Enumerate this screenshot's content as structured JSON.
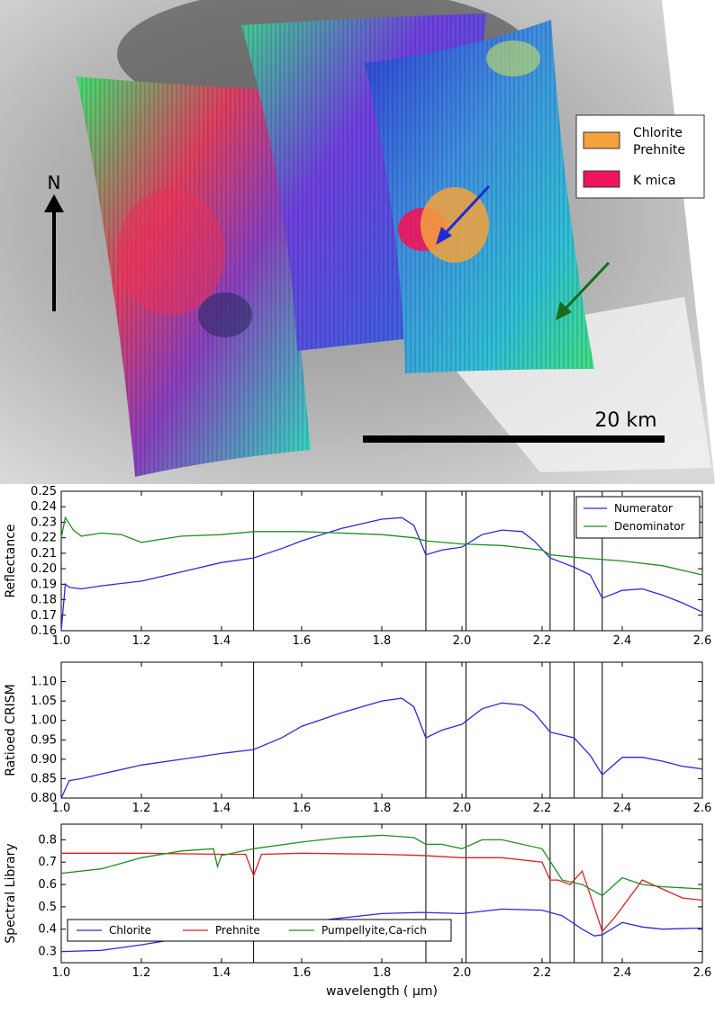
{
  "map": {
    "north_label": "N",
    "scale_label": "20 km",
    "legend": [
      {
        "label": "Chlorite\nPrehnite",
        "color": "#f5a23c"
      },
      {
        "label": "K mica",
        "color": "#f0145a"
      }
    ],
    "arrow_colors": {
      "blue": "#1f2bd6",
      "green": "#1a6b1a"
    }
  },
  "chart_data": [
    {
      "type": "line",
      "ylabel": "Reflectance",
      "xlim": [
        1.0,
        2.6
      ],
      "ylim": [
        0.16,
        0.25
      ],
      "xticks": [
        "1.0",
        "1.2",
        "1.4",
        "1.6",
        "1.8",
        "2.0",
        "2.2",
        "2.4",
        "2.6"
      ],
      "yticks": [
        "0.16",
        "0.17",
        "0.18",
        "0.19",
        "0.20",
        "0.21",
        "0.22",
        "0.23",
        "0.24",
        "0.25"
      ],
      "vlines": [
        1.48,
        1.91,
        2.01,
        2.22,
        2.28,
        2.35
      ],
      "legend_position": "top-right",
      "series": [
        {
          "name": "Numerator",
          "color": "#2b2bd6",
          "x": [
            1.0,
            1.01,
            1.02,
            1.05,
            1.1,
            1.2,
            1.3,
            1.4,
            1.48,
            1.55,
            1.6,
            1.7,
            1.8,
            1.85,
            1.88,
            1.91,
            1.95,
            2.0,
            2.05,
            2.1,
            2.15,
            2.18,
            2.22,
            2.28,
            2.32,
            2.35,
            2.4,
            2.45,
            2.5,
            2.55,
            2.6
          ],
          "y": [
            0.16,
            0.19,
            0.188,
            0.187,
            0.189,
            0.192,
            0.198,
            0.204,
            0.207,
            0.213,
            0.218,
            0.226,
            0.232,
            0.233,
            0.228,
            0.209,
            0.212,
            0.214,
            0.222,
            0.225,
            0.224,
            0.218,
            0.207,
            0.201,
            0.196,
            0.181,
            0.186,
            0.187,
            0.183,
            0.178,
            0.172
          ]
        },
        {
          "name": "Denominator",
          "color": "#1f8f1f",
          "x": [
            1.0,
            1.01,
            1.03,
            1.05,
            1.1,
            1.15,
            1.2,
            1.3,
            1.4,
            1.48,
            1.6,
            1.7,
            1.8,
            1.88,
            1.91,
            2.0,
            2.1,
            2.2,
            2.22,
            2.3,
            2.4,
            2.5,
            2.6
          ],
          "y": [
            0.22,
            0.233,
            0.225,
            0.221,
            0.223,
            0.222,
            0.217,
            0.221,
            0.222,
            0.224,
            0.224,
            0.223,
            0.222,
            0.22,
            0.218,
            0.216,
            0.215,
            0.212,
            0.209,
            0.207,
            0.205,
            0.202,
            0.196
          ]
        }
      ]
    },
    {
      "type": "line",
      "ylabel": "Ratioed CRISM",
      "xlim": [
        1.0,
        2.6
      ],
      "ylim": [
        0.8,
        1.15
      ],
      "xticks": [
        "1.0",
        "1.2",
        "1.4",
        "1.6",
        "1.8",
        "2.0",
        "2.2",
        "2.4",
        "2.6"
      ],
      "yticks": [
        "0.80",
        "0.85",
        "0.90",
        "0.95",
        "1.00",
        "1.05",
        "1.10"
      ],
      "vlines": [
        1.48,
        1.91,
        2.01,
        2.22,
        2.28,
        2.35
      ],
      "series": [
        {
          "color": "#2b2bd6",
          "x": [
            1.0,
            1.02,
            1.05,
            1.1,
            1.2,
            1.3,
            1.4,
            1.48,
            1.55,
            1.6,
            1.7,
            1.8,
            1.85,
            1.88,
            1.91,
            1.95,
            2.0,
            2.05,
            2.1,
            2.15,
            2.18,
            2.22,
            2.28,
            2.32,
            2.35,
            2.4,
            2.45,
            2.5,
            2.55,
            2.6
          ],
          "y": [
            0.8,
            0.845,
            0.85,
            0.862,
            0.885,
            0.9,
            0.915,
            0.925,
            0.955,
            0.985,
            1.02,
            1.05,
            1.057,
            1.035,
            0.955,
            0.975,
            0.99,
            1.03,
            1.045,
            1.04,
            1.02,
            0.97,
            0.955,
            0.91,
            0.86,
            0.905,
            0.905,
            0.895,
            0.882,
            0.875
          ]
        }
      ]
    },
    {
      "type": "line",
      "ylabel": "Spectral Library",
      "xlabel": "wavelength ( μm)",
      "xlim": [
        1.0,
        2.6
      ],
      "ylim": [
        0.25,
        0.87
      ],
      "xticks": [
        "1.0",
        "1.2",
        "1.4",
        "1.6",
        "1.8",
        "2.0",
        "2.2",
        "2.4",
        "2.6"
      ],
      "yticks": [
        "0.3",
        "0.4",
        "0.5",
        "0.6",
        "0.7",
        "0.8"
      ],
      "vlines": [
        1.48,
        1.91,
        2.01,
        2.22,
        2.28,
        2.35
      ],
      "legend_position": "lower-left",
      "series": [
        {
          "name": "Chlorite",
          "color": "#2b2bd6",
          "x": [
            1.0,
            1.1,
            1.2,
            1.3,
            1.38,
            1.39,
            1.4,
            1.48,
            1.6,
            1.7,
            1.8,
            1.9,
            2.0,
            2.1,
            2.2,
            2.25,
            2.3,
            2.33,
            2.35,
            2.4,
            2.45,
            2.5,
            2.6
          ],
          "y": [
            0.3,
            0.305,
            0.33,
            0.36,
            0.38,
            0.36,
            0.385,
            0.41,
            0.43,
            0.45,
            0.47,
            0.475,
            0.47,
            0.49,
            0.485,
            0.46,
            0.4,
            0.37,
            0.375,
            0.43,
            0.41,
            0.4,
            0.405
          ]
        },
        {
          "name": "Prehnite",
          "color": "#e02020",
          "x": [
            1.0,
            1.2,
            1.4,
            1.46,
            1.48,
            1.5,
            1.6,
            1.8,
            1.9,
            2.0,
            2.1,
            2.2,
            2.22,
            2.24,
            2.27,
            2.3,
            2.33,
            2.35,
            2.38,
            2.45,
            2.5,
            2.55,
            2.6
          ],
          "y": [
            0.74,
            0.74,
            0.735,
            0.735,
            0.64,
            0.735,
            0.74,
            0.735,
            0.73,
            0.72,
            0.72,
            0.7,
            0.62,
            0.62,
            0.6,
            0.66,
            0.5,
            0.39,
            0.45,
            0.62,
            0.58,
            0.54,
            0.53
          ]
        },
        {
          "name": "Pumpellyite,Ca-rich",
          "color": "#1f8f1f",
          "x": [
            1.0,
            1.1,
            1.2,
            1.3,
            1.38,
            1.39,
            1.4,
            1.48,
            1.6,
            1.7,
            1.8,
            1.88,
            1.91,
            1.95,
            2.0,
            2.05,
            2.1,
            2.2,
            2.25,
            2.3,
            2.35,
            2.4,
            2.45,
            2.5,
            2.6
          ],
          "y": [
            0.65,
            0.67,
            0.72,
            0.75,
            0.76,
            0.68,
            0.73,
            0.76,
            0.79,
            0.81,
            0.82,
            0.81,
            0.78,
            0.78,
            0.76,
            0.8,
            0.8,
            0.76,
            0.62,
            0.6,
            0.55,
            0.63,
            0.6,
            0.59,
            0.58
          ]
        }
      ]
    }
  ]
}
